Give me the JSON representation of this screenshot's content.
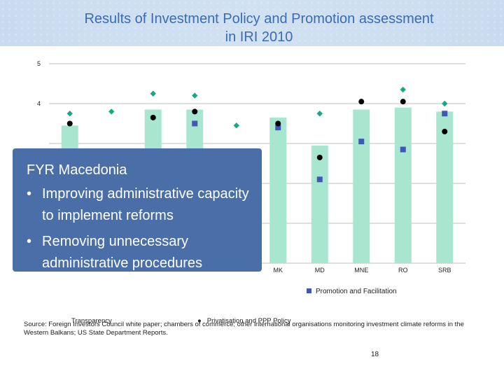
{
  "title_line1": "Results of Investment Policy and Promotion assessment",
  "title_line2": "in IRI 2010",
  "callout": {
    "heading": "FYR Macedonia",
    "bullets": [
      "Improving administrative capacity to implement reforms",
      "Removing unnecessary administrative procedures"
    ]
  },
  "legend": {
    "promotion": "Promotion and Facilitation",
    "transparency": "Transparency",
    "privatisation": "Privatisation and PPP Policy"
  },
  "source_text": "Source: Foreign Investors Council white paper; chambers of commerce; other international organisations monitoring investment climate reforms in the Western Balkans; US State Department Reports.",
  "page_number": "18",
  "colors": {
    "bar": "#a8e6cf",
    "diamond": "#1aa785",
    "square": "#3f57b5",
    "circle": "#000000",
    "header": "#c9dcef",
    "callout": "#4a6fa8"
  },
  "chart_data": {
    "type": "bar",
    "categories": [
      "",
      "",
      "",
      "",
      "",
      "MK",
      "MD",
      "MNE",
      "RO",
      "SRB"
    ],
    "ylim": [
      0,
      5
    ],
    "y_ticks": [
      "5",
      "4"
    ],
    "y_tick_values": [
      5,
      4
    ],
    "series": [
      {
        "name": "",
        "kind": "bar",
        "values": [
          3.45,
          null,
          3.85,
          3.85,
          null,
          3.65,
          2.95,
          3.85,
          3.9,
          3.8
        ]
      },
      {
        "name": "",
        "kind": "diamond",
        "values": [
          3.75,
          3.8,
          4.25,
          4.2,
          3.45,
          null,
          3.75,
          null,
          4.35,
          4.0
        ]
      },
      {
        "name": "Promotion and Facilitation",
        "kind": "square",
        "values": [
          null,
          null,
          null,
          3.5,
          null,
          3.4,
          2.1,
          3.05,
          2.85,
          3.75
        ]
      },
      {
        "name": "",
        "kind": "circle",
        "values": [
          3.5,
          null,
          3.65,
          3.8,
          null,
          3.5,
          2.65,
          4.05,
          4.05,
          3.3
        ]
      }
    ]
  }
}
